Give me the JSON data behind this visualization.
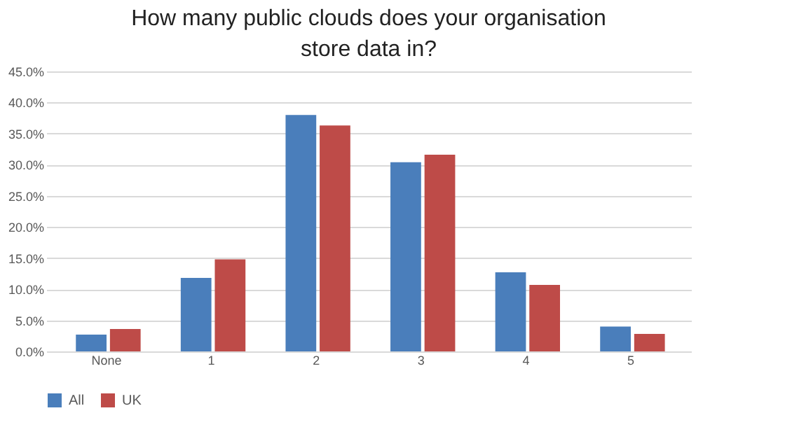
{
  "chart_data": {
    "type": "bar",
    "title": "How many public clouds does your organisation store data in?",
    "categories": [
      "None",
      "1",
      "2",
      "3",
      "4",
      "5"
    ],
    "series": [
      {
        "name": "All",
        "color": "#4a7ebb",
        "values": [
          2.7,
          11.8,
          38.0,
          30.4,
          12.7,
          4.0
        ]
      },
      {
        "name": "UK",
        "color": "#be4b48",
        "values": [
          3.6,
          14.8,
          36.3,
          31.6,
          10.7,
          2.8
        ]
      }
    ],
    "ylim": [
      0,
      45
    ],
    "yticks": [
      {
        "value": 0,
        "label": "0.0%"
      },
      {
        "value": 5,
        "label": "5.0%"
      },
      {
        "value": 10,
        "label": "10.0%"
      },
      {
        "value": 15,
        "label": "15.0%"
      },
      {
        "value": 20,
        "label": "20.0%"
      },
      {
        "value": 25,
        "label": "25.0%"
      },
      {
        "value": 30,
        "label": "30.0%"
      },
      {
        "value": 35,
        "label": "35.0%"
      },
      {
        "value": 40,
        "label": "40.0%"
      },
      {
        "value": 45,
        "label": "45.0%"
      }
    ],
    "grid": "y",
    "legend": "bottom"
  }
}
